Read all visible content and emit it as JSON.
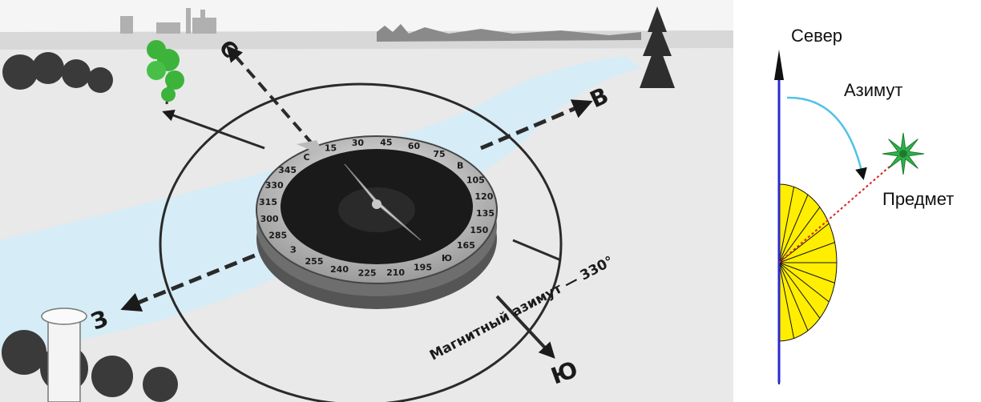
{
  "illustration": {
    "directions": {
      "north": "С",
      "east": "В",
      "west": "З",
      "south": "Ю"
    },
    "scale_numbers": [
      "15",
      "30",
      "45",
      "60",
      "75",
      "В",
      "105",
      "120",
      "135",
      "150",
      "165",
      "Ю",
      "195",
      "210",
      "225",
      "240",
      "255",
      "З",
      "285",
      "300",
      "315",
      "330",
      "345",
      "С"
    ],
    "azimuth_label": "Магнитный азимут — 330°"
  },
  "diagram": {
    "north_label": "Север",
    "azimuth_label": "Азимут",
    "object_label": "Предмет"
  },
  "colors": {
    "north_line": "#2a2ad0",
    "arc": "#4fc3e6",
    "star": "#2db24a",
    "ray": "#e02020",
    "half_disc": "#ffee00",
    "tree": "#3cb43c",
    "water": "#d6ecf6"
  }
}
